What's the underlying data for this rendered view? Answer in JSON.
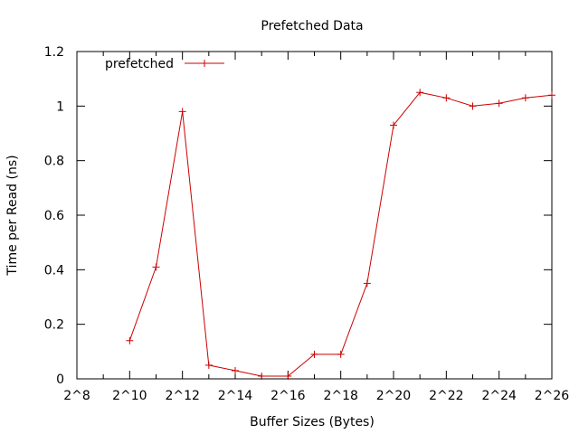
{
  "chart_data": {
    "type": "line",
    "title": "Prefetched Data",
    "xlabel": "Buffer Sizes (Bytes)",
    "ylabel": "Time per Read (ns)",
    "x_scale": "log2",
    "xlim": [
      256,
      67108864
    ],
    "ylim": [
      0,
      1.2
    ],
    "grid": false,
    "legend_position": "top-left",
    "x_ticks": [
      {
        "value": 256,
        "label": "2^8"
      },
      {
        "value": 1024,
        "label": "2^10"
      },
      {
        "value": 4096,
        "label": "2^12"
      },
      {
        "value": 16384,
        "label": "2^14"
      },
      {
        "value": 65536,
        "label": "2^16"
      },
      {
        "value": 262144,
        "label": "2^18"
      },
      {
        "value": 1048576,
        "label": "2^20"
      },
      {
        "value": 4194304,
        "label": "2^22"
      },
      {
        "value": 16777216,
        "label": "2^24"
      },
      {
        "value": 67108864,
        "label": "2^26"
      }
    ],
    "y_ticks": [
      {
        "value": 0,
        "label": "0"
      },
      {
        "value": 0.2,
        "label": "0.2"
      },
      {
        "value": 0.4,
        "label": "0.4"
      },
      {
        "value": 0.6,
        "label": "0.6"
      },
      {
        "value": 0.8,
        "label": "0.8"
      },
      {
        "value": 1.0,
        "label": "1"
      },
      {
        "value": 1.2,
        "label": "1.2"
      }
    ],
    "series": [
      {
        "name": "prefetched",
        "color": "#cc0000",
        "marker": "plus",
        "points": [
          {
            "x": 1024,
            "y": 0.14
          },
          {
            "x": 2048,
            "y": 0.41
          },
          {
            "x": 4096,
            "y": 0.98
          },
          {
            "x": 8192,
            "y": 0.05
          },
          {
            "x": 16384,
            "y": 0.03
          },
          {
            "x": 32768,
            "y": 0.01
          },
          {
            "x": 65536,
            "y": 0.01
          },
          {
            "x": 131072,
            "y": 0.09
          },
          {
            "x": 262144,
            "y": 0.09
          },
          {
            "x": 524288,
            "y": 0.35
          },
          {
            "x": 1048576,
            "y": 0.93
          },
          {
            "x": 2097152,
            "y": 1.05
          },
          {
            "x": 4194304,
            "y": 1.03
          },
          {
            "x": 8388608,
            "y": 1.0
          },
          {
            "x": 16777216,
            "y": 1.01
          },
          {
            "x": 33554432,
            "y": 1.03
          },
          {
            "x": 67108864,
            "y": 1.04
          }
        ]
      }
    ]
  }
}
